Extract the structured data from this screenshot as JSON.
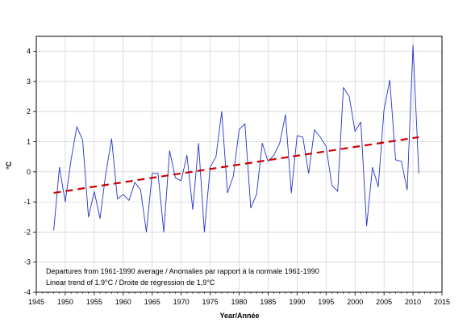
{
  "chart_data": {
    "type": "line",
    "title": "",
    "xlabel": "Year/Année",
    "ylabel": "°C",
    "xlim": [
      1945,
      2015
    ],
    "ylim": [
      -4,
      4.5
    ],
    "xticks": [
      1945,
      1950,
      1955,
      1960,
      1965,
      1970,
      1975,
      1980,
      1985,
      1990,
      1995,
      2000,
      2005,
      2010,
      2015
    ],
    "yticks": [
      -4,
      -3,
      -2,
      -1,
      0,
      1,
      2,
      3,
      4
    ],
    "grid": "both",
    "annotations": [
      "Departures from 1961-1990 average / Anomalies par rapport à la normale 1961-1990",
      "Linear trend of 1.9°C / Droite de régression de 1,9°C"
    ],
    "series": [
      {
        "style": "solid",
        "color": "#2233cc",
        "x": [
          1948,
          1949,
          1950,
          1951,
          1952,
          1953,
          1954,
          1955,
          1956,
          1957,
          1958,
          1959,
          1960,
          1961,
          1962,
          1963,
          1964,
          1965,
          1966,
          1967,
          1968,
          1969,
          1970,
          1971,
          1972,
          1973,
          1974,
          1975,
          1976,
          1977,
          1978,
          1979,
          1980,
          1981,
          1982,
          1983,
          1984,
          1985,
          1986,
          1987,
          1988,
          1989,
          1990,
          1991,
          1992,
          1993,
          1994,
          1995,
          1996,
          1997,
          1998,
          1999,
          2000,
          2001,
          2002,
          2003,
          2004,
          2005,
          2006,
          2007,
          2008,
          2009,
          2010,
          2011
        ],
        "y": [
          -1.95,
          0.15,
          -1.0,
          0.4,
          1.5,
          1.05,
          -1.5,
          -0.65,
          -1.55,
          -0.05,
          1.1,
          -0.9,
          -0.75,
          -0.95,
          -0.35,
          -0.6,
          -2.0,
          -0.05,
          -0.05,
          -2.0,
          0.7,
          -0.2,
          -0.3,
          0.55,
          -1.25,
          0.95,
          -2.0,
          0.15,
          0.5,
          2.0,
          -0.7,
          -0.15,
          1.4,
          1.6,
          -1.2,
          -0.75,
          0.95,
          0.35,
          0.55,
          0.95,
          1.9,
          -0.7,
          1.2,
          1.15,
          -0.05,
          1.4,
          1.15,
          0.85,
          -0.45,
          -0.65,
          2.8,
          2.5,
          1.35,
          1.65,
          -1.8,
          0.15,
          -0.5,
          2.05,
          3.05,
          0.4,
          0.35,
          -0.6,
          4.2,
          -0.05
        ]
      },
      {
        "style": "dashed",
        "color": "#cc0000",
        "x": [
          1948,
          2011
        ],
        "y": [
          -0.7,
          1.15
        ]
      }
    ]
  }
}
